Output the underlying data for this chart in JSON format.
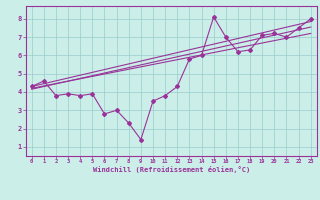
{
  "xlabel": "Windchill (Refroidissement éolien,°C)",
  "bg_color": "#cceee8",
  "line_color": "#993399",
  "grid_color": "#99cccc",
  "xlim": [
    -0.5,
    23.5
  ],
  "ylim": [
    0.5,
    8.7
  ],
  "xticks": [
    0,
    1,
    2,
    3,
    4,
    5,
    6,
    7,
    8,
    9,
    10,
    11,
    12,
    13,
    14,
    15,
    16,
    17,
    18,
    19,
    20,
    21,
    22,
    23
  ],
  "yticks": [
    1,
    2,
    3,
    4,
    5,
    6,
    7,
    8
  ],
  "series1_x": [
    0,
    1,
    2,
    3,
    4,
    5,
    6,
    7,
    8,
    9,
    10,
    11,
    12,
    13,
    14,
    15,
    16,
    17,
    18,
    19,
    20,
    21,
    22,
    23
  ],
  "series1_y": [
    4.3,
    4.6,
    3.8,
    3.9,
    3.8,
    3.9,
    2.8,
    3.0,
    2.3,
    1.4,
    3.5,
    3.8,
    4.3,
    5.8,
    6.0,
    8.1,
    7.0,
    6.2,
    6.3,
    7.1,
    7.2,
    7.0,
    7.5,
    8.0
  ],
  "series2_x": [
    0,
    23
  ],
  "series2_y": [
    4.2,
    7.2
  ],
  "series3_x": [
    0,
    23
  ],
  "series3_y": [
    4.3,
    7.85
  ],
  "series4_x": [
    0,
    23
  ],
  "series4_y": [
    4.15,
    7.55
  ]
}
